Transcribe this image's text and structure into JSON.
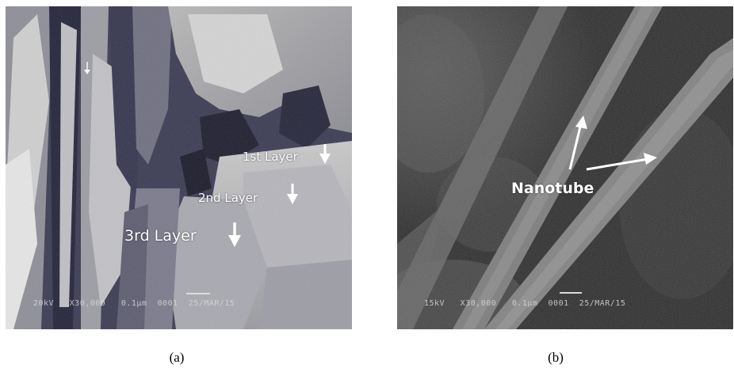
{
  "figure": {
    "panels": [
      {
        "caption": "(a)",
        "labels": {
          "layer1": "1st Layer",
          "layer2": "2nd Layer",
          "layer3": "3rd Layer"
        },
        "databar": {
          "voltage": "20kV",
          "magnification": "X30,000",
          "scale": "0.1μm",
          "number": "0001",
          "date": "25/MAR/15"
        }
      },
      {
        "caption": "(b)",
        "labels": {
          "nanotube": "Nanotube"
        },
        "databar": {
          "voltage": "15kV",
          "magnification": "X30,000",
          "scale": "0.1μm",
          "number": "0001",
          "date": "25/MAR/15"
        }
      }
    ]
  }
}
